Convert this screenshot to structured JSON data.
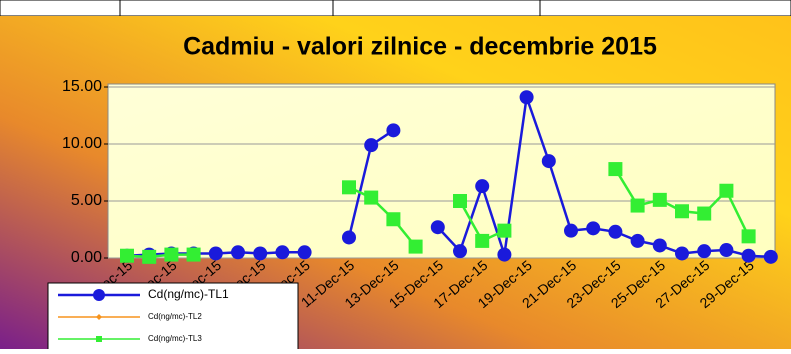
{
  "chart_data": {
    "type": "line",
    "title": "Cadmiu - valori zilnice - decembrie 2015",
    "categories": [
      "1-Dec-15",
      null,
      "3-Dec-15",
      null,
      "5-Dec-15",
      null,
      "7-Dec-15",
      null,
      "9-Dec-15",
      null,
      "11-Dec-15",
      null,
      "13-Dec-15",
      null,
      "15-Dec-15",
      null,
      "17-Dec-15",
      null,
      "19-Dec-15",
      null,
      "21-Dec-15",
      null,
      "23-Dec-15",
      null,
      "25-Dec-15",
      null,
      "27-Dec-15",
      null,
      "29-Dec-15",
      null
    ],
    "series": [
      {
        "name": "Cd(ng/mc)-TL1",
        "color": "#1a1adb",
        "marker": "circle",
        "values": [
          0.2,
          0.3,
          0.4,
          0.4,
          0.4,
          0.5,
          0.4,
          0.5,
          0.5,
          null,
          1.8,
          9.9,
          11.2,
          null,
          2.7,
          0.6,
          6.3,
          0.3,
          14.1,
          8.5,
          2.4,
          2.6,
          2.3,
          1.5,
          1.1,
          0.4,
          0.6,
          0.7,
          0.2,
          0.1
        ]
      },
      {
        "name": "Cd(ng/mc)-TL2",
        "color": "#f7941d",
        "marker": "diamond",
        "values": [
          null,
          null,
          null,
          null,
          null,
          null,
          null,
          null,
          null,
          null,
          null,
          null,
          null,
          null,
          null,
          null,
          null,
          null,
          null,
          null,
          null,
          null,
          null,
          null,
          null,
          null,
          null,
          null,
          null,
          null
        ]
      },
      {
        "name": "Cd(ng/mc)-TL3",
        "color": "#33ee33",
        "marker": "square",
        "values": [
          0.2,
          0.1,
          0.3,
          0.3,
          null,
          null,
          null,
          null,
          null,
          null,
          6.2,
          5.3,
          3.4,
          1.0,
          null,
          5.0,
          1.5,
          2.4,
          null,
          null,
          null,
          null,
          7.8,
          4.6,
          5.1,
          4.1,
          3.9,
          5.9,
          1.9,
          null
        ]
      }
    ],
    "ylim": [
      0,
      15
    ],
    "yticks": [
      {
        "value": 0,
        "label": "0.00"
      },
      {
        "value": 5,
        "label": "5.00"
      },
      {
        "value": 10,
        "label": "10.00"
      },
      {
        "value": 15,
        "label": "15.00"
      }
    ],
    "grid": true
  }
}
